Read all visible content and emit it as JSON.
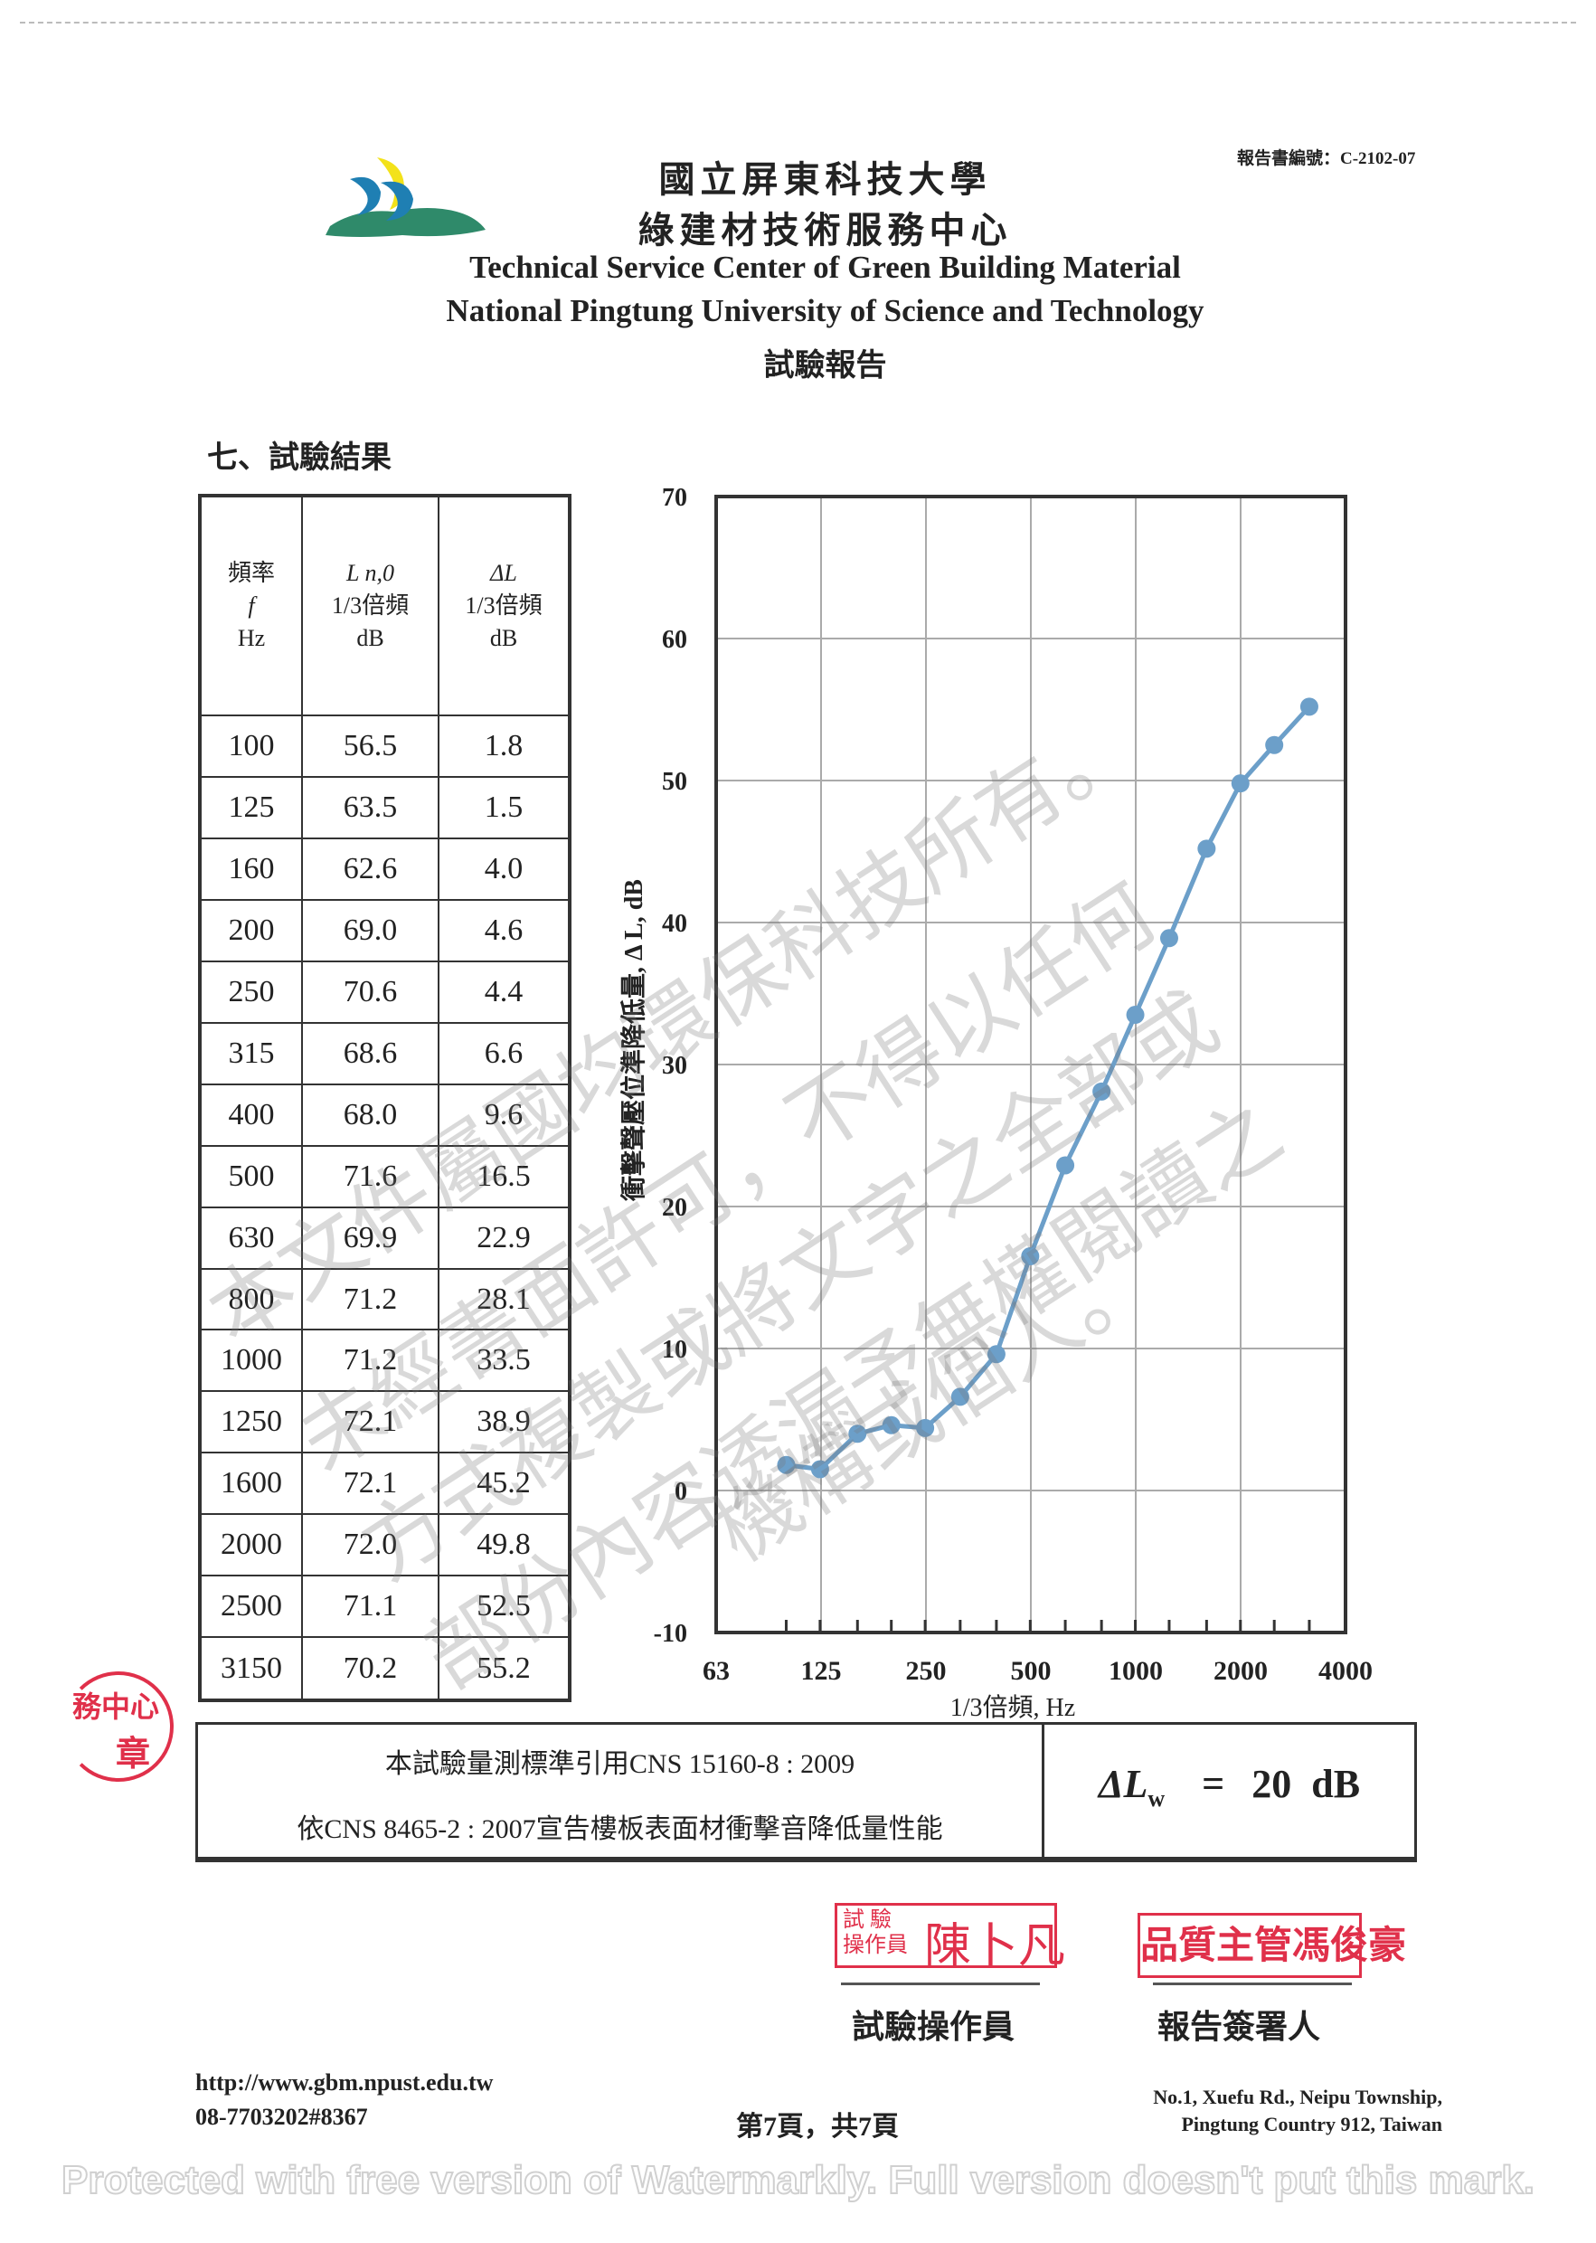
{
  "header": {
    "report_no": "報告書編號：C-2102-07",
    "title_cn_1": "國立屏東科技大學",
    "title_cn_2": "綠建材技術服務中心",
    "title_en_1": "Technical Service Center of Green Building Material",
    "title_en_2": "National Pingtung University of Science and Technology",
    "doc_type": "試驗報告"
  },
  "section_title": "七、試驗結果",
  "table": {
    "headers": [
      {
        "l1": "頻率",
        "l2": "f",
        "l3": "Hz"
      },
      {
        "l1": "L n,0",
        "l2": "1/3倍頻",
        "l3": "dB"
      },
      {
        "l1": "ΔL",
        "l2": "1/3倍頻",
        "l3": "dB"
      }
    ],
    "rows": [
      [
        "100",
        "56.5",
        "1.8"
      ],
      [
        "125",
        "63.5",
        "1.5"
      ],
      [
        "160",
        "62.6",
        "4.0"
      ],
      [
        "200",
        "69.0",
        "4.6"
      ],
      [
        "250",
        "70.6",
        "4.4"
      ],
      [
        "315",
        "68.6",
        "6.6"
      ],
      [
        "400",
        "68.0",
        "9.6"
      ],
      [
        "500",
        "71.6",
        "16.5"
      ],
      [
        "630",
        "69.9",
        "22.9"
      ],
      [
        "800",
        "71.2",
        "28.1"
      ],
      [
        "1000",
        "71.2",
        "33.5"
      ],
      [
        "1250",
        "72.1",
        "38.9"
      ],
      [
        "1600",
        "72.1",
        "45.2"
      ],
      [
        "2000",
        "72.0",
        "49.8"
      ],
      [
        "2500",
        "71.1",
        "52.5"
      ],
      [
        "3150",
        "70.2",
        "55.2"
      ]
    ]
  },
  "chart_data": {
    "type": "line",
    "xlabel": "1/3倍頻, Hz",
    "ylabel": "衝擊聲壓位準降低量, Δ L, dB",
    "x_scale": "log",
    "xlim": [
      63,
      4000
    ],
    "ylim": [
      -10,
      70
    ],
    "x_ticks": [
      "63",
      "125",
      "250",
      "500",
      "1000",
      "2000",
      "4000"
    ],
    "y_ticks": [
      "70",
      "60",
      "50",
      "40",
      "30",
      "20",
      "10",
      "0",
      "-10"
    ],
    "grid": true,
    "series_color": "#6c9fc9",
    "x": [
      100,
      125,
      160,
      200,
      250,
      315,
      400,
      500,
      630,
      800,
      1000,
      1250,
      1600,
      2000,
      2500,
      3150
    ],
    "y": [
      1.8,
      1.5,
      4.0,
      4.6,
      4.4,
      6.6,
      9.6,
      16.5,
      22.9,
      28.1,
      33.5,
      38.9,
      45.2,
      49.8,
      52.5,
      55.2
    ]
  },
  "summary": {
    "line1": "本試驗量測標準引用CNS 15160-8 : 2009",
    "line2": "依CNS 8465-2 : 2007宣告樓板表面材衝擊音降低量性能",
    "result_symbol": "ΔL",
    "result_sub": "w",
    "result_eq": "=",
    "result_value": "20  dB"
  },
  "signatures": {
    "stamp1_small_1": "試 驗",
    "stamp1_small_2": "操作員",
    "stamp1_name": "陳卜凡",
    "stamp2_text": "品質主管馮俊豪",
    "label1": "試驗操作員",
    "label2": "報告簽署人",
    "seal_text_1": "務中心",
    "seal_text_2": "章"
  },
  "footer": {
    "url": "http://www.gbm.npust.edu.tw",
    "phone": "08-7703202#8367",
    "page": "第7頁，共7頁",
    "address_1": "No.1, Xuefu Rd., Neipu Township,",
    "address_2": "Pingtung Country 912, Taiwan"
  },
  "watermark_lines": [
    "本文件屬國均環保科技所有。",
    "未經書面許可，不得以任何",
    "方式複製或將文字之全部或",
    "部份內容透漏予無權閱讀之",
    "機構或個人。"
  ],
  "tool_watermark": "Protected with free version of Watermarkly. Full version doesn't put this mark."
}
